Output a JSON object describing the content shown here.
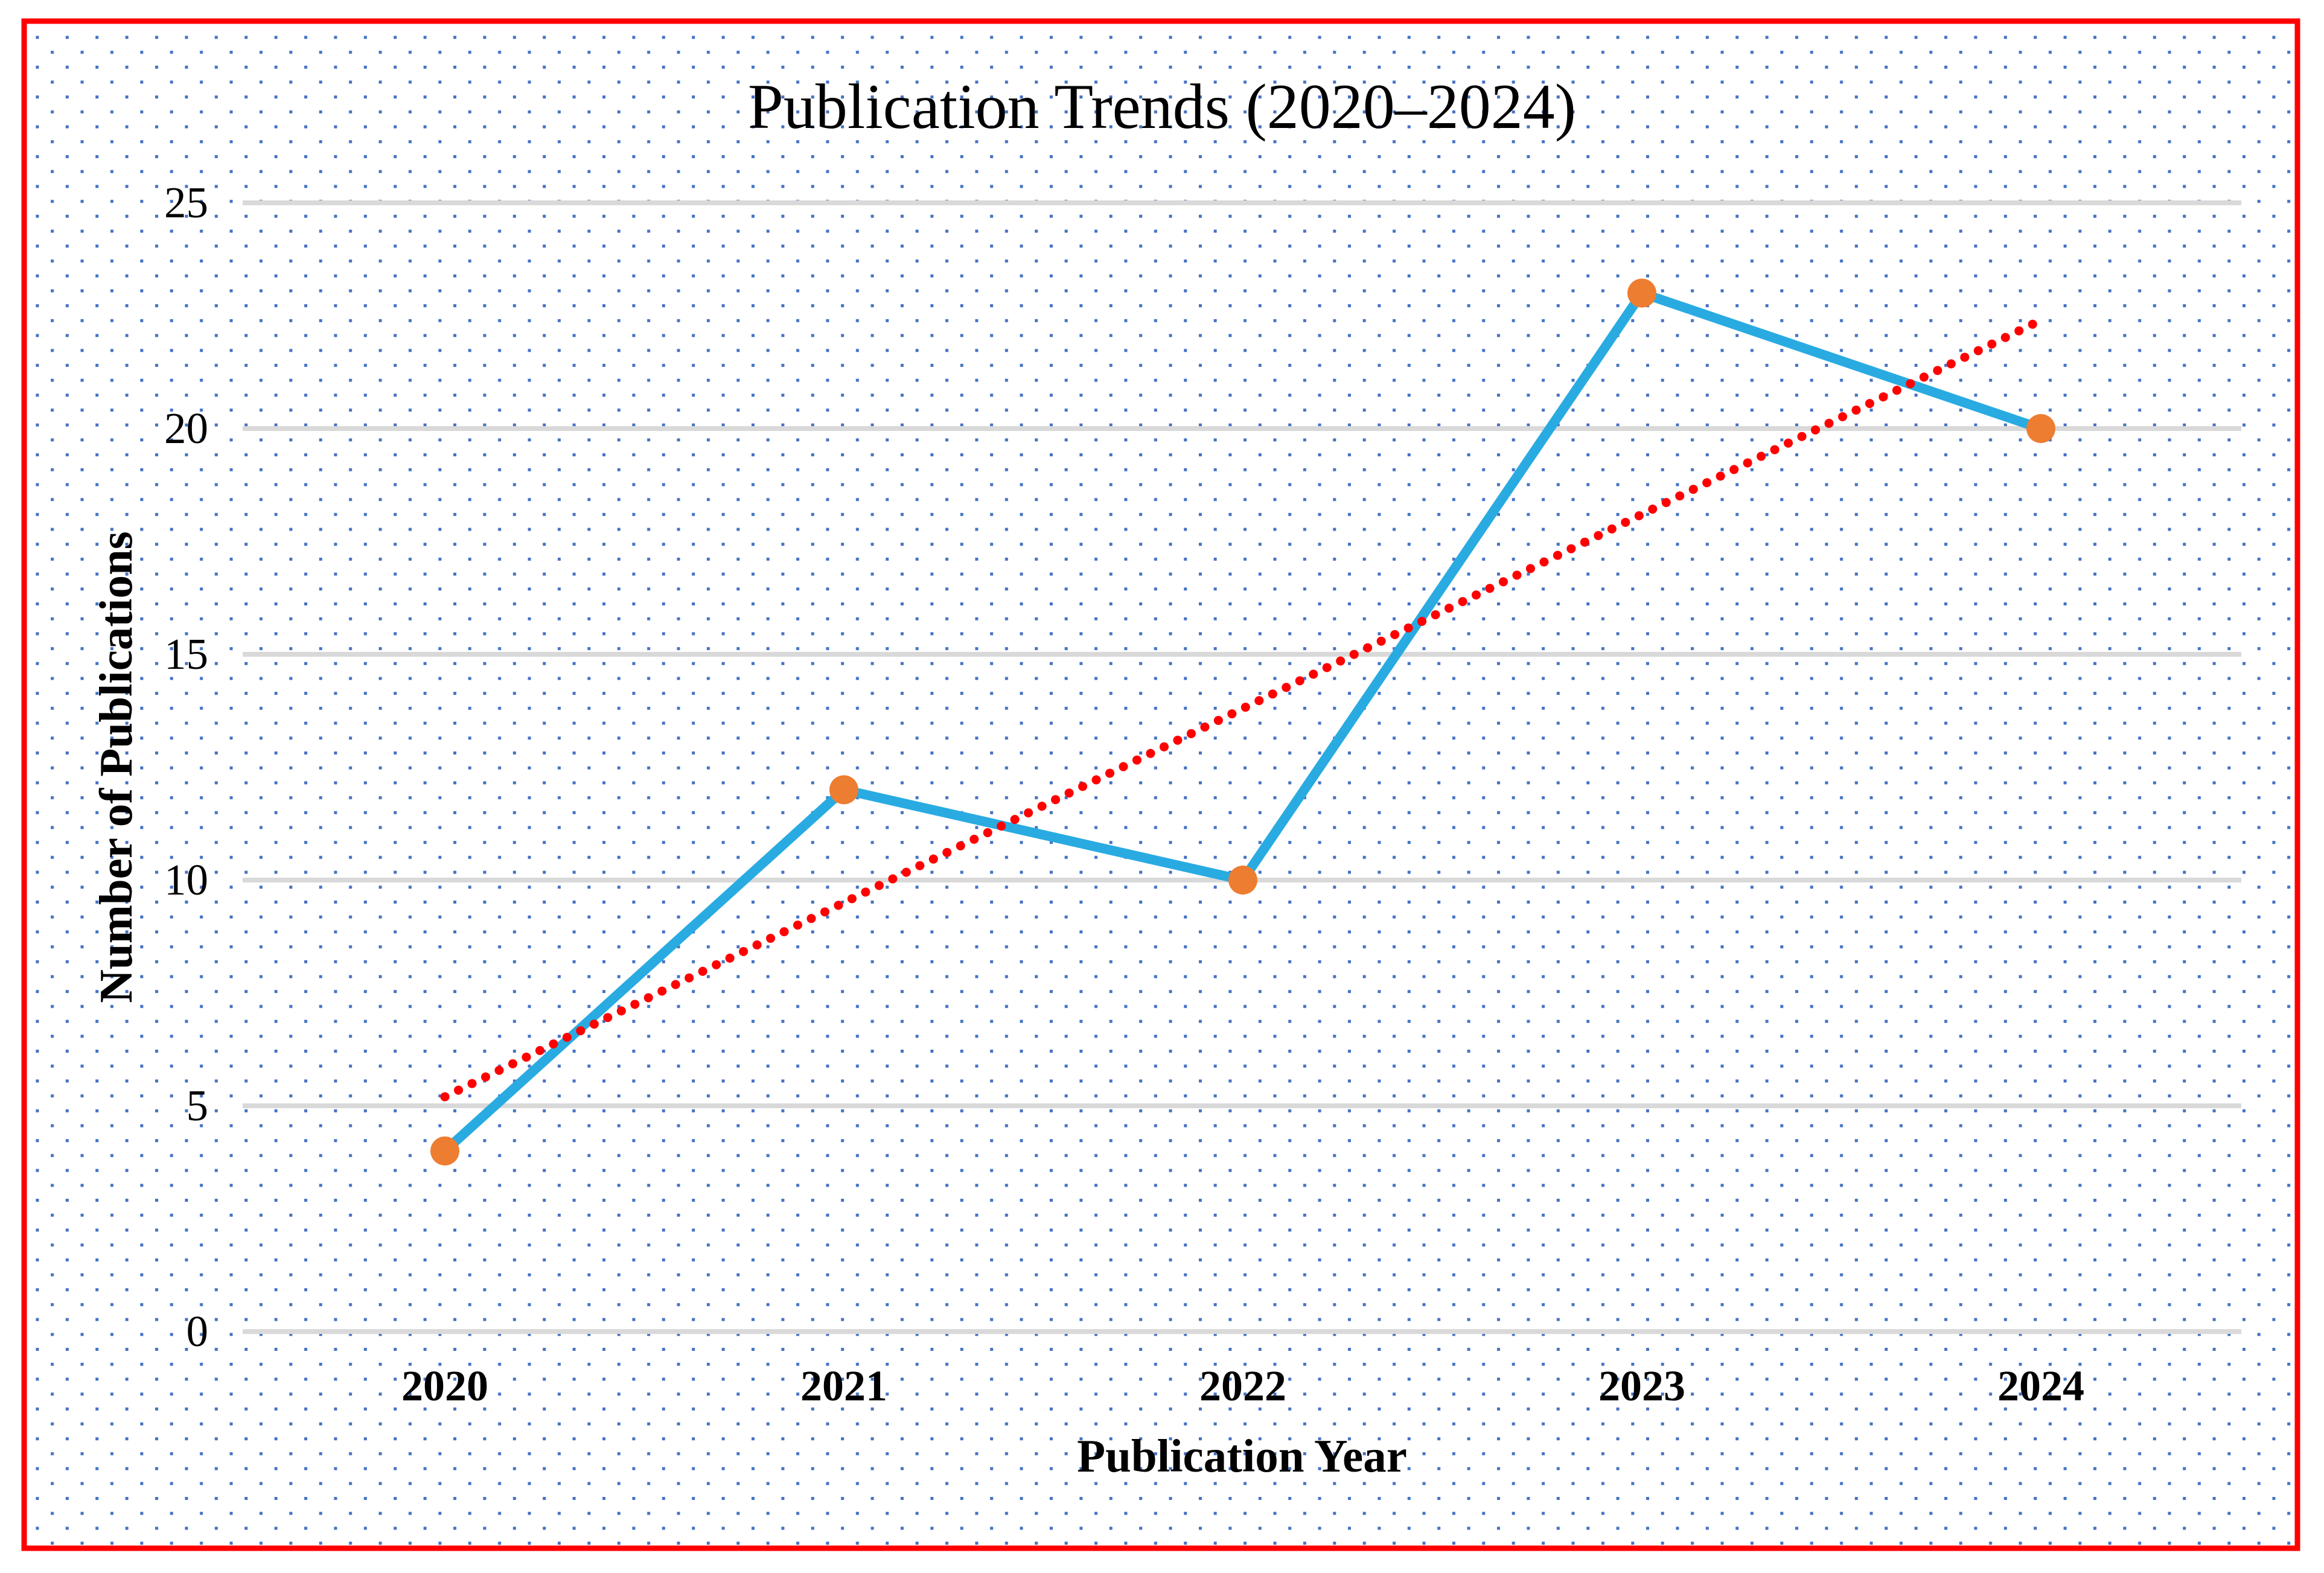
{
  "title": "Publication Trends (2020–2024)",
  "chart_data": {
    "type": "line",
    "title": "Publication Trends (2020–2024)",
    "xlabel": "Publication Year",
    "ylabel": "Number of Publications",
    "categories": [
      "2020",
      "2021",
      "2022",
      "2023",
      "2024"
    ],
    "series": [
      {
        "name": "Number of Publications",
        "values": [
          4,
          12,
          10,
          23,
          20
        ]
      }
    ],
    "trendline": {
      "kind": "linear-dotted",
      "start_value": 5.2,
      "end_value": 22.4
    },
    "yticks": [
      25,
      20,
      15,
      10,
      5,
      0
    ],
    "ylim": [
      0,
      25
    ],
    "grid": "horizontal",
    "legend": "none"
  },
  "colors": {
    "series_line": "#29ABE2",
    "marker": "#ED7D31",
    "trendline": "#FF0000",
    "gridline": "#D9D9D9",
    "pattern_dot": "#4472C4",
    "frame_border": "#FF0000",
    "text": "#000000",
    "background": "#FFFFFF"
  }
}
